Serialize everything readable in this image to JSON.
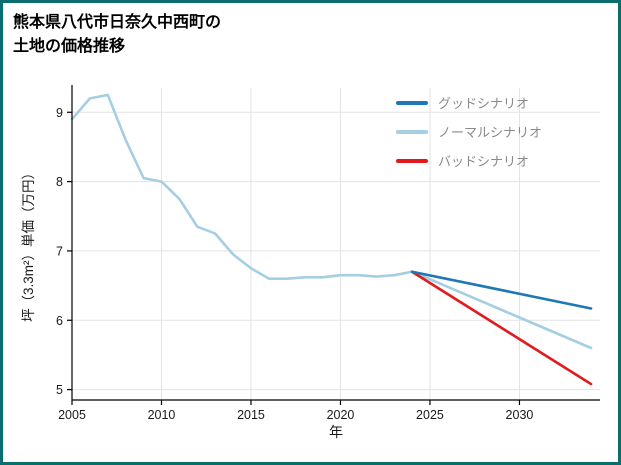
{
  "page": {
    "background": "#ffffff",
    "border_color": "#0b6e6e"
  },
  "title": {
    "line1": "熊本県八代市日奈久中西町の",
    "line2": "土地の価格推移"
  },
  "chart_data": {
    "type": "line",
    "title": "熊本県八代市日奈久中西町の土地の価格推移",
    "xlabel": "年",
    "ylabel": "坪（3.3m²）単価（万円）",
    "xlim": [
      2005,
      2034.5
    ],
    "ylim": [
      4.85,
      9.35
    ],
    "xticks": [
      2005,
      2010,
      2015,
      2020,
      2025,
      2030
    ],
    "yticks": [
      5,
      6,
      7,
      8,
      9
    ],
    "grid": true,
    "grid_color": "#e3e3e3",
    "axis_color": "#000000",
    "tick_label_color": "#1a1a1a",
    "legend_position": "top-right",
    "series": [
      {
        "key": "good",
        "name": "グッドシナリオ",
        "color": "#1f77b4",
        "legend": true,
        "z": 3,
        "x": [
          2024,
          2034
        ],
        "y": [
          6.7,
          6.17
        ]
      },
      {
        "key": "normal",
        "name": "ノーマルシナリオ",
        "color": "#a6cee3",
        "legend": true,
        "z": 1,
        "x": [
          2005,
          2006,
          2007,
          2008,
          2009,
          2010,
          2011,
          2012,
          2013,
          2014,
          2015,
          2016,
          2017,
          2018,
          2019,
          2020,
          2021,
          2022,
          2023,
          2024,
          2025,
          2026,
          2027,
          2028,
          2029,
          2030,
          2031,
          2032,
          2033,
          2034
        ],
        "y": [
          8.9,
          9.2,
          9.25,
          8.6,
          8.05,
          8.0,
          7.75,
          7.35,
          7.25,
          6.95,
          6.75,
          6.6,
          6.6,
          6.62,
          6.62,
          6.65,
          6.65,
          6.63,
          6.65,
          6.7,
          6.59,
          6.48,
          6.37,
          6.26,
          6.15,
          6.04,
          5.93,
          5.82,
          5.71,
          5.6
        ]
      },
      {
        "key": "bad",
        "name": "バッドシナリオ",
        "color": "#e31a1c",
        "legend": true,
        "z": 2,
        "x": [
          2024,
          2034
        ],
        "y": [
          6.7,
          5.08
        ]
      }
    ]
  }
}
